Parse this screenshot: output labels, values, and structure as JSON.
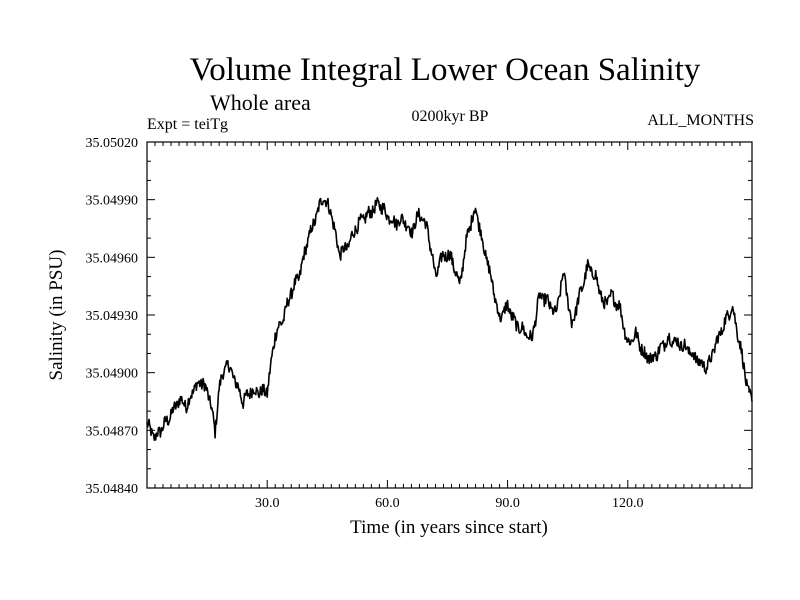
{
  "header": {
    "expt": "Expt = teiTg",
    "period": "0200kyr BP",
    "months": "ALL_MONTHS"
  },
  "chart_data": {
    "type": "line",
    "title": "Volume Integral Lower Ocean Salinity",
    "subtitle": "Whole area",
    "xlabel": "Time (in years since start)",
    "ylabel": "Salinity (in PSU)",
    "xlim": [
      0,
      151
    ],
    "ylim": [
      35.0484,
      35.0502
    ],
    "x_ticks": [
      30,
      60,
      90,
      120
    ],
    "x_tick_labels": [
      "30.0",
      "60.0",
      "90.0",
      "120.0"
    ],
    "y_ticks": [
      35.0484,
      35.0487,
      35.049,
      35.0493,
      35.0496,
      35.0499,
      35.0502
    ],
    "y_tick_labels": [
      "35.04840",
      "35.04870",
      "35.04900",
      "35.04930",
      "35.04960",
      "35.04990",
      "35.05020"
    ],
    "grid": false,
    "series": [
      {
        "name": "salinity",
        "x": [
          0,
          2,
          4,
          6,
          8,
          10,
          12,
          14,
          16,
          17,
          18,
          20,
          22,
          24,
          26,
          28,
          30,
          32,
          34,
          36,
          38,
          40,
          42,
          44,
          46,
          48,
          50,
          52,
          54,
          56,
          58,
          60,
          62,
          64,
          66,
          68,
          70,
          72,
          74,
          76,
          78,
          80,
          82,
          84,
          86,
          88,
          90,
          92,
          94,
          96,
          98,
          100,
          102,
          104,
          106,
          108,
          110,
          112,
          114,
          116,
          118,
          120,
          122,
          124,
          126,
          128,
          130,
          132,
          134,
          136,
          138,
          140,
          142,
          144,
          146,
          148,
          150,
          151
        ],
        "values": [
          35.04873,
          35.04866,
          35.04872,
          35.04878,
          35.04886,
          35.04883,
          35.04893,
          35.04895,
          35.04884,
          35.04868,
          35.04893,
          35.04905,
          35.04896,
          35.04885,
          35.04891,
          35.0489,
          35.0489,
          35.0492,
          35.04928,
          35.04942,
          35.0495,
          35.04968,
          35.0498,
          35.04992,
          35.04983,
          35.04962,
          35.04965,
          35.04975,
          35.0498,
          35.04984,
          35.04988,
          35.04982,
          35.04978,
          35.0498,
          35.04973,
          35.04983,
          35.04975,
          35.0495,
          35.04962,
          35.0496,
          35.04945,
          35.04972,
          35.04986,
          35.04966,
          35.04948,
          35.04928,
          35.04935,
          35.04925,
          35.04922,
          35.04917,
          35.0494,
          35.04937,
          35.0493,
          35.04952,
          35.04925,
          35.0494,
          35.04955,
          35.0495,
          35.04935,
          35.0494,
          35.04934,
          35.04915,
          35.0492,
          35.0491,
          35.04907,
          35.04912,
          35.04918,
          35.04916,
          35.04914,
          35.0491,
          35.04905,
          35.04903,
          35.04915,
          35.04925,
          35.04935,
          35.04915,
          35.0489,
          35.04885
        ]
      }
    ]
  }
}
